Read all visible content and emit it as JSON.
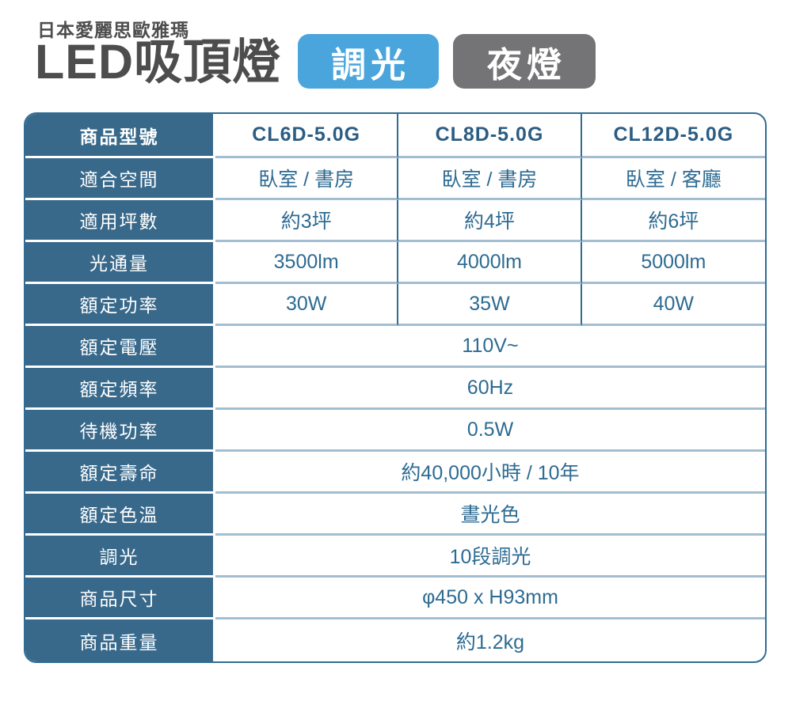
{
  "header": {
    "brand": "日本愛麗思歐雅瑪",
    "title": "LED吸頂燈",
    "badges": [
      {
        "id": "dimming",
        "label": "調光"
      },
      {
        "id": "nightlight",
        "label": "夜燈"
      }
    ]
  },
  "colors": {
    "teal": "#38698b",
    "line-dark": "#2f6d94",
    "line-light": "#a3bed0",
    "txt-data": "#2d6b92",
    "txt-model": "#2b5c82",
    "txt-title": "#4d4d4d",
    "badge-dim": "#4aa5dc",
    "badge-night": "#747476"
  },
  "table": {
    "columns": [
      "商品型號",
      "CL6D-5.0G",
      "CL8D-5.0G",
      "CL12D-5.0G"
    ],
    "rows": [
      {
        "label": "適合空間",
        "values": [
          "臥室 / 書房",
          "臥室 / 書房",
          "臥室 / 客廳"
        ]
      },
      {
        "label": "適用坪數",
        "values": [
          "約3坪",
          "約4坪",
          "約6坪"
        ]
      },
      {
        "label": "光通量",
        "values": [
          "3500lm",
          "4000lm",
          "5000lm"
        ]
      },
      {
        "label": "額定功率",
        "values": [
          "30W",
          "35W",
          "40W"
        ]
      },
      {
        "label": "額定電壓",
        "span": "110V~"
      },
      {
        "label": "額定頻率",
        "span": "60Hz"
      },
      {
        "label": "待機功率",
        "span": "0.5W"
      },
      {
        "label": "額定壽命",
        "span": "約40,000小時 / 10年"
      },
      {
        "label": "額定色溫",
        "span": "晝光色"
      },
      {
        "label": "調光",
        "span": "10段調光"
      },
      {
        "label": "商品尺寸",
        "span": "φ450 x H93mm"
      },
      {
        "label": "商品重量",
        "span": "約1.2kg"
      }
    ]
  }
}
